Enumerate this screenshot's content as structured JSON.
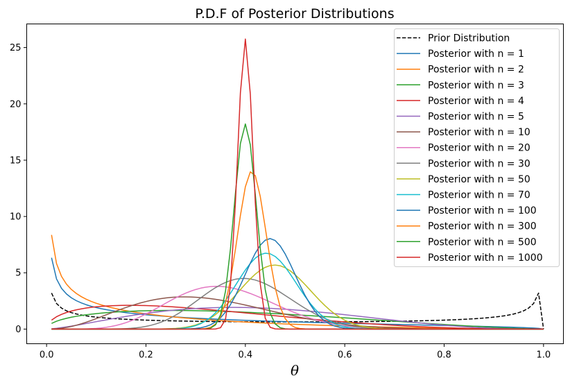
{
  "chart_data": {
    "type": "line",
    "title": "P.D.F of Posterior Distributions",
    "xlabel": "θ",
    "ylabel": "",
    "xlim": [
      -0.04,
      1.04
    ],
    "ylim": [
      -1.3,
      27.1
    ],
    "xticks": [
      0.0,
      0.2,
      0.4,
      0.6,
      0.8,
      1.0
    ],
    "xtick_labels": [
      "0.0",
      "0.2",
      "0.4",
      "0.6",
      "0.8",
      "1.0"
    ],
    "yticks": [
      0,
      5,
      10,
      15,
      20,
      25
    ],
    "ytick_labels": [
      "0",
      "5",
      "10",
      "15",
      "20",
      "25"
    ],
    "grid": false,
    "legend_position": "top-right",
    "x_range": [
      0.01,
      1.0
    ],
    "num_points": 100,
    "series": [
      {
        "name": "Prior Distribution",
        "color": "#000000",
        "dash": true,
        "alpha": 0.5,
        "beta": 0.5
      },
      {
        "name": "Posterior with n = 1",
        "color": "#1f77b4",
        "dash": false,
        "alpha": 0.5,
        "beta": 1.5
      },
      {
        "name": "Posterior with n = 2",
        "color": "#ff7f0e",
        "dash": false,
        "alpha": 0.5,
        "beta": 2.5
      },
      {
        "name": "Posterior with n = 3",
        "color": "#2ca02c",
        "dash": false,
        "alpha": 1.5,
        "beta": 2.5
      },
      {
        "name": "Posterior with n = 4",
        "color": "#d62728",
        "dash": false,
        "alpha": 1.5,
        "beta": 3.5
      },
      {
        "name": "Posterior with n = 5",
        "color": "#9467bd",
        "dash": false,
        "alpha": 2.5,
        "beta": 3.5
      },
      {
        "name": "Posterior with n = 10",
        "color": "#8c564b",
        "dash": false,
        "alpha": 3.5,
        "beta": 7.5
      },
      {
        "name": "Posterior with n = 20",
        "color": "#e377c2",
        "dash": false,
        "alpha": 7.5,
        "beta": 13.5
      },
      {
        "name": "Posterior with n = 30",
        "color": "#7f7f7f",
        "dash": false,
        "alpha": 12.5,
        "beta": 18.5
      },
      {
        "name": "Posterior with n = 50",
        "color": "#bcbd22",
        "dash": false,
        "alpha": 23.5,
        "beta": 27.5
      },
      {
        "name": "Posterior with n = 70",
        "color": "#17becf",
        "dash": false,
        "alpha": 31.5,
        "beta": 39.5
      },
      {
        "name": "Posterior with n = 100",
        "color": "#1f77b4",
        "dash": false,
        "alpha": 45.5,
        "beta": 55.5
      },
      {
        "name": "Posterior with n = 300",
        "color": "#ff7f0e",
        "dash": false,
        "alpha": 124.5,
        "beta": 176.5
      },
      {
        "name": "Posterior with n = 500",
        "color": "#2ca02c",
        "dash": false,
        "alpha": 200.5,
        "beta": 300.5
      },
      {
        "name": "Posterior with n = 1000",
        "color": "#d62728",
        "dash": false,
        "alpha": 400.5,
        "beta": 600.5
      }
    ]
  }
}
